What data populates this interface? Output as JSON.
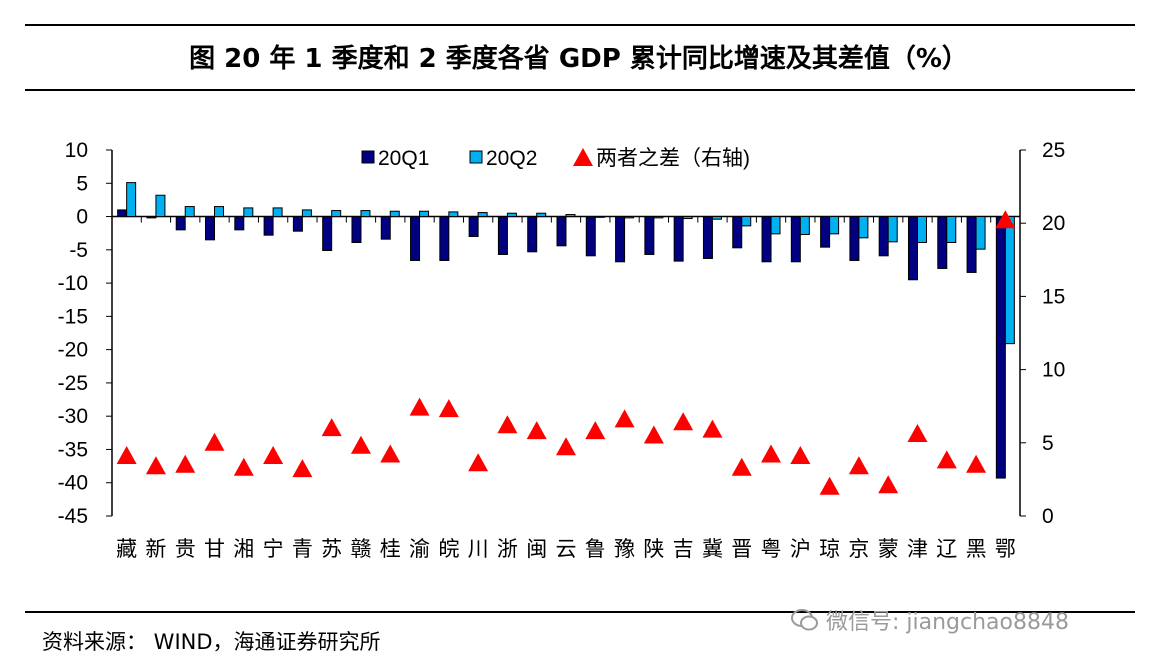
{
  "title": "图  20 年 1 季度和 2 季度各省 GDP 累计同比增速及其差值（%）",
  "source": "资料来源：  WIND，海通证券研究所",
  "watermark": "微信号: jiangchao8848",
  "chart_data": {
    "type": "bar",
    "categories": [
      "藏",
      "新",
      "贵",
      "甘",
      "湘",
      "宁",
      "青",
      "苏",
      "赣",
      "桂",
      "渝",
      "皖",
      "川",
      "浙",
      "闽",
      "云",
      "鲁",
      "豫",
      "陕",
      "吉",
      "冀",
      "晋",
      "粤",
      "沪",
      "琼",
      "京",
      "蒙",
      "津",
      "辽",
      "黑",
      "鄂"
    ],
    "series": [
      {
        "name": "20Q1",
        "type": "bar",
        "axis": "left",
        "color": "#000080",
        "values": [
          1.0,
          -0.2,
          -2.0,
          -3.5,
          -2.0,
          -2.8,
          -2.2,
          -5.1,
          -3.9,
          -3.4,
          -6.6,
          -6.6,
          -3.0,
          -5.7,
          -5.3,
          -4.4,
          -5.9,
          -6.8,
          -5.7,
          -6.7,
          -6.3,
          -4.7,
          -6.8,
          -6.8,
          -4.6,
          -6.6,
          -5.9,
          -9.5,
          -7.8,
          -8.4,
          -39.3
        ]
      },
      {
        "name": "20Q2",
        "type": "bar",
        "axis": "left",
        "color": "#00B0F0",
        "values": [
          5.1,
          3.2,
          1.5,
          1.5,
          1.3,
          1.3,
          1.0,
          0.9,
          0.9,
          0.8,
          0.8,
          0.7,
          0.6,
          0.5,
          0.5,
          0.3,
          -0.1,
          -0.2,
          -0.2,
          -0.3,
          -0.4,
          -1.4,
          -2.6,
          -2.7,
          -2.6,
          -3.2,
          -3.8,
          -3.9,
          -3.9,
          -4.9,
          -19.1
        ]
      },
      {
        "name": "两者之差（右轴)",
        "type": "scatter",
        "marker": "triangle",
        "axis": "right",
        "color": "#FF0000",
        "values": [
          4.1,
          3.4,
          3.5,
          5.0,
          3.3,
          4.1,
          3.2,
          6.0,
          4.8,
          4.2,
          7.4,
          7.3,
          3.6,
          6.2,
          5.8,
          4.7,
          5.8,
          6.6,
          5.5,
          6.4,
          5.9,
          3.3,
          4.2,
          4.1,
          2.0,
          3.4,
          2.1,
          5.6,
          3.8,
          3.5,
          20.2
        ]
      }
    ],
    "y_left": {
      "range": [
        -45,
        10
      ],
      "ticks": [
        10,
        5,
        0,
        -5,
        -10,
        -15,
        -20,
        -25,
        -30,
        -35,
        -40,
        -45
      ]
    },
    "y_right": {
      "range": [
        0,
        25
      ],
      "ticks": [
        25,
        20,
        15,
        10,
        5,
        0
      ]
    },
    "legend": "top-center",
    "grid": false
  }
}
